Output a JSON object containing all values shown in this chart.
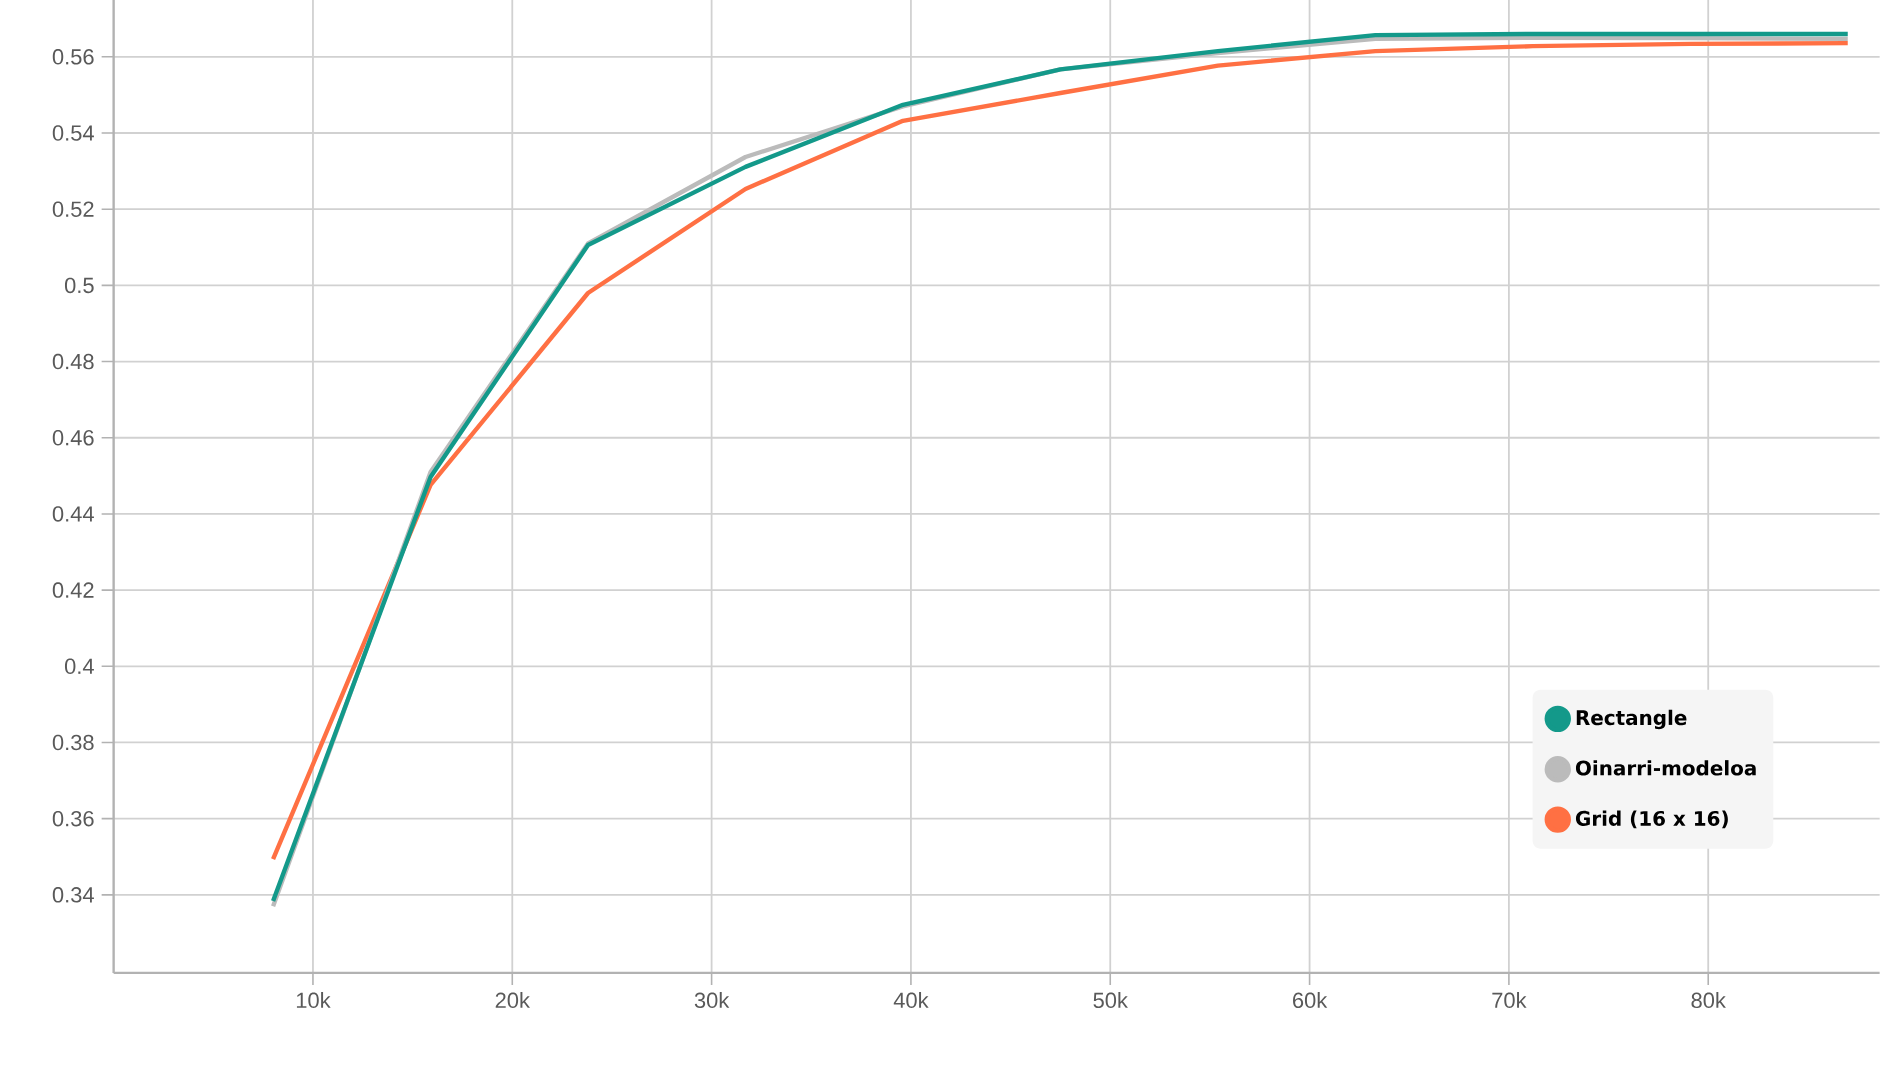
{
  "chart_data": {
    "type": "line",
    "x": [
      8000,
      15900,
      23800,
      31700,
      39600,
      47500,
      55400,
      63300,
      71200,
      79100,
      87000
    ],
    "series": [
      {
        "name": "Rectangle",
        "color": "#13998a",
        "values": [
          0.3384,
          0.4497,
          0.5106,
          0.5311,
          0.5474,
          0.5567,
          0.5615,
          0.5657,
          0.566,
          0.566,
          0.566
        ]
      },
      {
        "name": "Oinarri-modeloa",
        "color": "#bbbbbb",
        "values": [
          0.337,
          0.451,
          0.511,
          0.5337,
          0.547,
          0.5567,
          0.561,
          0.5647,
          0.565,
          0.5649,
          0.5647
        ]
      },
      {
        "name": "Grid (16 x 16)",
        "color": "#ff7043",
        "values": [
          0.3494,
          0.4476,
          0.498,
          0.5253,
          0.5432,
          0.5505,
          0.5577,
          0.5615,
          0.5628,
          0.5634,
          0.5636
        ]
      }
    ],
    "xlim": [
      0,
      88600
    ],
    "ylim": [
      0.3195,
      0.5794
    ],
    "xticks": [
      {
        "value": 10000,
        "label": "10k"
      },
      {
        "value": 20000,
        "label": "20k"
      },
      {
        "value": 30000,
        "label": "30k"
      },
      {
        "value": 40000,
        "label": "40k"
      },
      {
        "value": 50000,
        "label": "50k"
      },
      {
        "value": 60000,
        "label": "60k"
      },
      {
        "value": 70000,
        "label": "70k"
      },
      {
        "value": 80000,
        "label": "80k"
      }
    ],
    "yticks": [
      0.34,
      0.36,
      0.38,
      0.4,
      0.42,
      0.44,
      0.46,
      0.48,
      0.5,
      0.52,
      0.54,
      0.56
    ],
    "grid": true,
    "legend": "bottom right",
    "line_style": "solid"
  }
}
